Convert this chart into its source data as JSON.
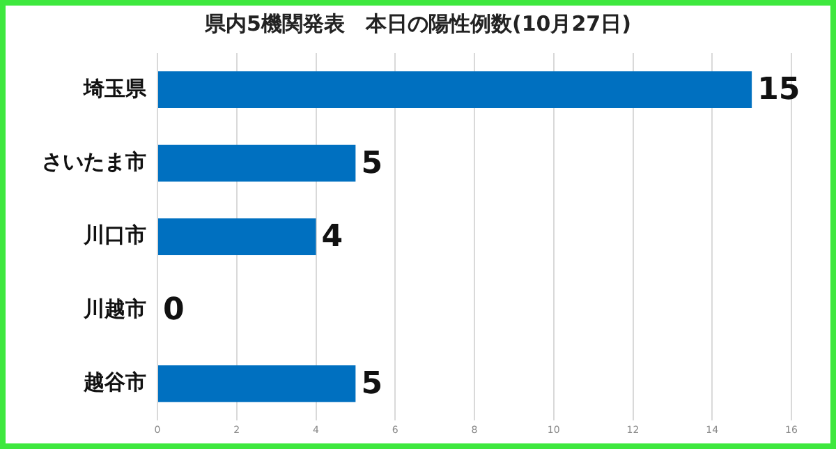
{
  "chart_data": {
    "type": "bar",
    "orientation": "horizontal",
    "title": "県内5機関発表　本日の陽性例数(10月27日)",
    "categories": [
      "埼玉県",
      "さいたま市",
      "川口市",
      "川越市",
      "越谷市"
    ],
    "values": [
      15,
      5,
      4,
      0,
      5
    ],
    "color": "#0070c0",
    "xlim": [
      0,
      16
    ],
    "xticks": [
      0,
      2,
      4,
      6,
      8,
      10,
      12,
      14,
      16
    ],
    "grid": "x",
    "data_labels": true,
    "legend": false
  }
}
